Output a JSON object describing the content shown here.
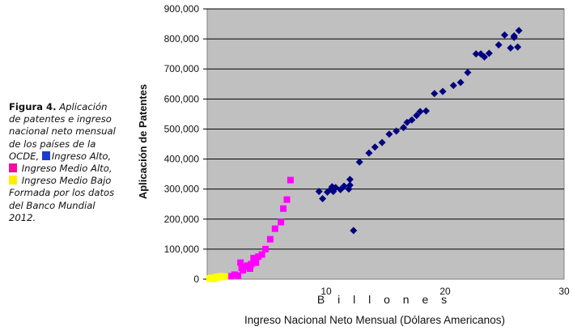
{
  "caption": {
    "figure_label": "Figura 4.",
    "line1_rest": "Aplicación",
    "line2": "de patentes e ingreso",
    "line3": "nacional neto mensual",
    "line4": "de los países de la",
    "line5a": "OCDE,",
    "line5b": "Ingreso Alto,",
    "line6": "Ingreso Medio Alto,",
    "line7": "Ingreso Medio Bajo",
    "line8": "Formada por los datos",
    "line9": "del Banco Mundial",
    "line10": "2012."
  },
  "colors": {
    "plot_bg": "#c0c0c0",
    "high_income": "#000080",
    "upper_middle": "#ff00ff",
    "lower_middle": "#ffff00"
  },
  "chart_data": {
    "type": "scatter",
    "title": "",
    "ylabel": "Aplicación de Patentes",
    "xlabel": "Ingreso Nacional Neto Mensual (Dólares Americanos)",
    "x_inner_label": "B i l l o n e s",
    "xlim": [
      0,
      30
    ],
    "ylim": [
      0,
      900000
    ],
    "x_ticks": [
      "10",
      "20",
      "30"
    ],
    "y_ticks": [
      "0",
      "100,000",
      "200,000",
      "300,000",
      "400,000",
      "500,000",
      "600,000",
      "700,000",
      "800,000",
      "900,000"
    ],
    "grid": "horizontal",
    "series": [
      {
        "name": "Ingreso Alto",
        "marker": "diamond",
        "color": "#000080",
        "points": [
          [
            9.4,
            292000
          ],
          [
            9.7,
            268000
          ],
          [
            10.1,
            290000
          ],
          [
            10.4,
            300000
          ],
          [
            10.5,
            308000
          ],
          [
            10.6,
            292000
          ],
          [
            10.8,
            305000
          ],
          [
            11.2,
            298000
          ],
          [
            11.5,
            310000
          ],
          [
            11.9,
            300000
          ],
          [
            12.0,
            313000
          ],
          [
            12.0,
            332000
          ],
          [
            12.3,
            162000
          ],
          [
            12.8,
            390000
          ],
          [
            13.6,
            420000
          ],
          [
            14.1,
            440000
          ],
          [
            14.7,
            455000
          ],
          [
            15.3,
            483000
          ],
          [
            15.9,
            493000
          ],
          [
            16.5,
            505000
          ],
          [
            16.8,
            522000
          ],
          [
            17.2,
            530000
          ],
          [
            17.6,
            545000
          ],
          [
            17.9,
            558000
          ],
          [
            18.4,
            560000
          ],
          [
            19.1,
            618000
          ],
          [
            19.8,
            625000
          ],
          [
            20.7,
            645000
          ],
          [
            21.3,
            655000
          ],
          [
            21.9,
            688000
          ],
          [
            22.6,
            750000
          ],
          [
            23.0,
            750000
          ],
          [
            23.3,
            740000
          ],
          [
            23.7,
            752000
          ],
          [
            24.5,
            780000
          ],
          [
            25.0,
            813000
          ],
          [
            25.5,
            770000
          ],
          [
            25.8,
            810000
          ],
          [
            25.8,
            805000
          ],
          [
            26.2,
            828000
          ],
          [
            26.1,
            773000
          ]
        ]
      },
      {
        "name": "Ingreso Medio Alto",
        "marker": "square",
        "color": "#ff00ff",
        "points": [
          [
            2.0,
            10000
          ],
          [
            2.3,
            15000
          ],
          [
            2.6,
            12000
          ],
          [
            2.8,
            55000
          ],
          [
            2.9,
            38000
          ],
          [
            3.0,
            30000
          ],
          [
            3.2,
            42000
          ],
          [
            3.4,
            45000
          ],
          [
            3.6,
            35000
          ],
          [
            3.7,
            50000
          ],
          [
            3.9,
            70000
          ],
          [
            4.1,
            55000
          ],
          [
            4.3,
            75000
          ],
          [
            4.6,
            82000
          ],
          [
            4.9,
            100000
          ],
          [
            5.3,
            133000
          ],
          [
            5.7,
            168000
          ],
          [
            6.2,
            190000
          ],
          [
            6.4,
            235000
          ],
          [
            6.7,
            265000
          ],
          [
            7.0,
            330000
          ]
        ]
      },
      {
        "name": "Ingreso Medio Bajo",
        "marker": "square",
        "color": "#ffff00",
        "points": [
          [
            0.2,
            2000
          ],
          [
            0.4,
            5000
          ],
          [
            0.6,
            3000
          ],
          [
            0.8,
            8000
          ],
          [
            0.9,
            6000
          ],
          [
            1.1,
            10000
          ],
          [
            1.3,
            7000
          ],
          [
            1.5,
            9000
          ],
          [
            0.5,
            1000
          ],
          [
            0.3,
            4000
          ]
        ]
      }
    ]
  }
}
